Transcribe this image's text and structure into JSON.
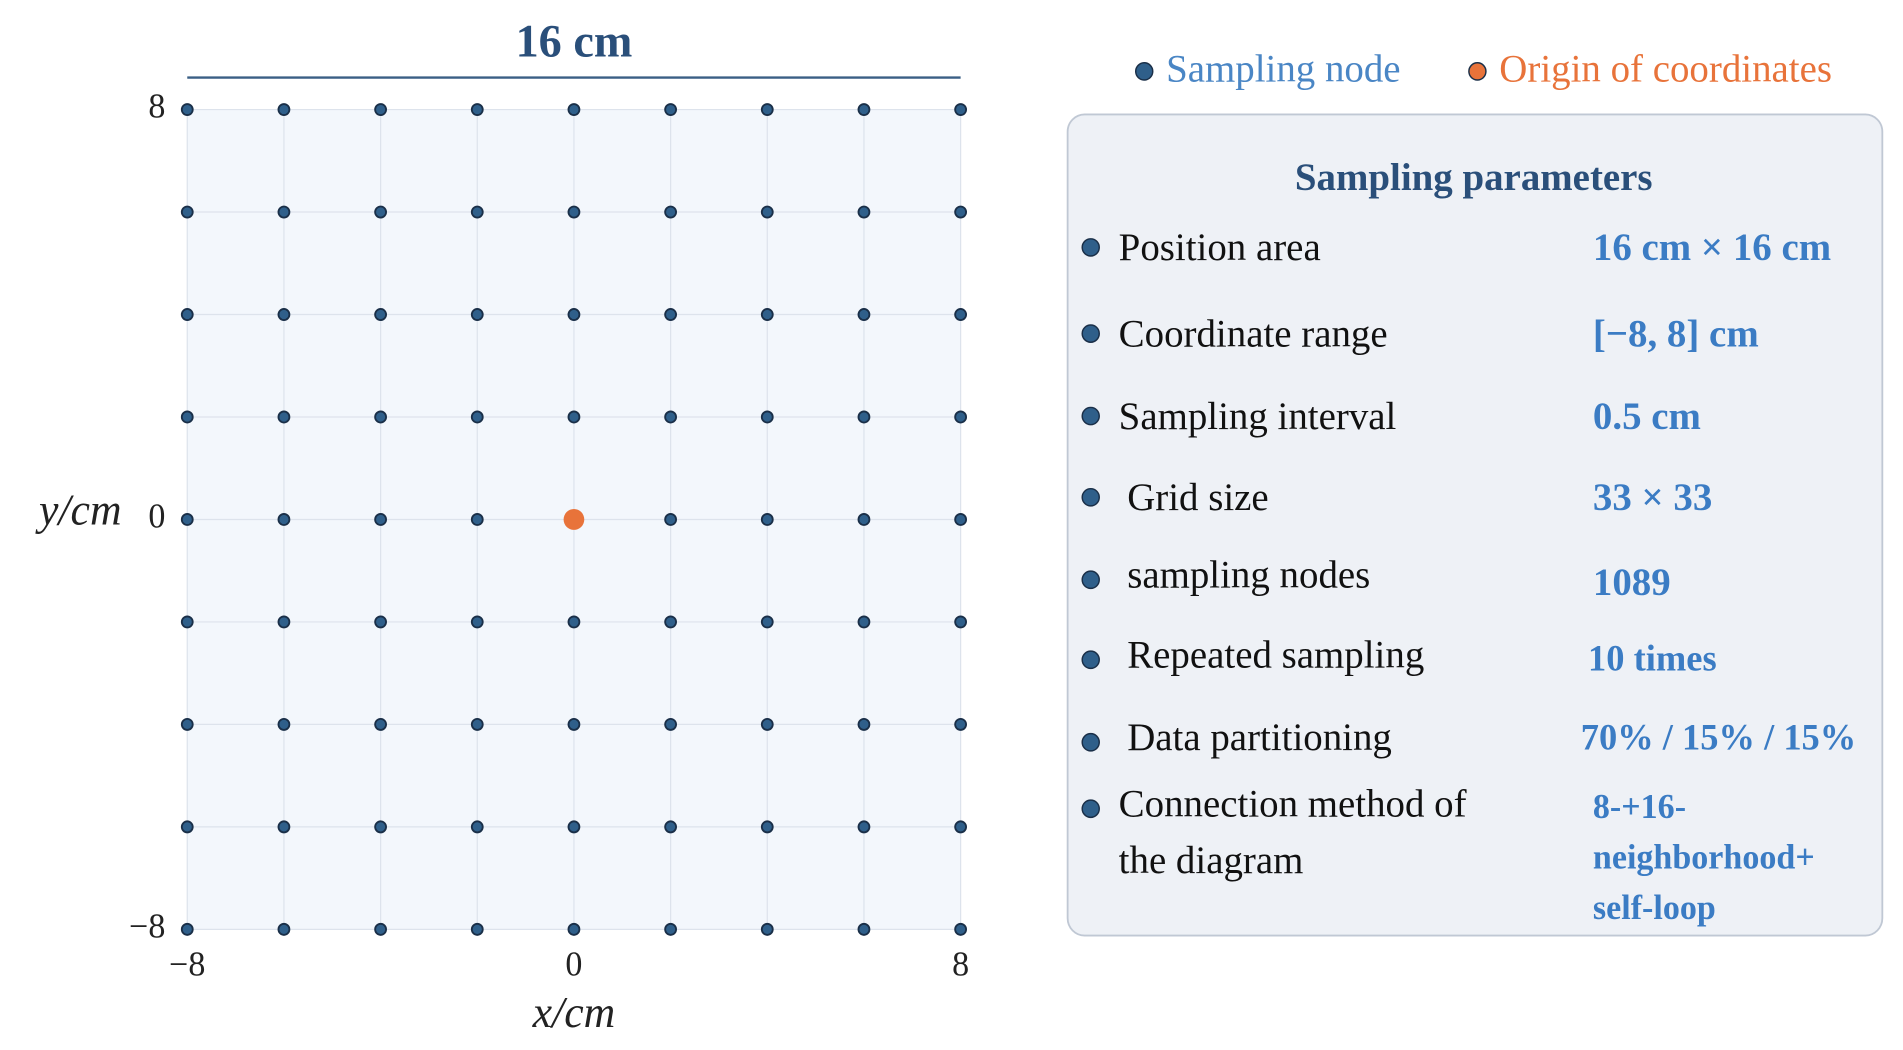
{
  "chart_data": {
    "type": "scatter",
    "annotation": "16 cm",
    "x_label": "x/cm",
    "y_label": "y/cm",
    "xlim": [
      -8,
      8
    ],
    "ylim": [
      -8,
      8
    ],
    "xticks": [
      {
        "value": -8,
        "label": "−8"
      },
      0,
      8
    ],
    "yticks": [
      {
        "value": -8,
        "label": "−8"
      },
      0,
      8
    ],
    "grid": true,
    "series": [
      {
        "name": "Sampling node",
        "color": "#2f5f8a",
        "x": [
          -8,
          -6,
          -4,
          -2,
          0,
          2,
          4,
          6,
          8,
          -8,
          -6,
          -4,
          -2,
          0,
          2,
          4,
          6,
          8,
          -8,
          -6,
          -4,
          -2,
          0,
          2,
          4,
          6,
          8,
          -8,
          -6,
          -4,
          -2,
          0,
          2,
          4,
          6,
          8,
          -8,
          -6,
          -4,
          -2,
          2,
          4,
          6,
          8,
          -8,
          -6,
          -4,
          -2,
          0,
          2,
          4,
          6,
          8,
          -8,
          -6,
          -4,
          -2,
          0,
          2,
          4,
          6,
          8,
          -8,
          -6,
          -4,
          -2,
          0,
          2,
          4,
          6,
          8,
          -8,
          -6,
          -4,
          -2,
          0,
          2,
          4,
          6,
          8
        ],
        "y": [
          8,
          8,
          8,
          8,
          8,
          8,
          8,
          8,
          8,
          6,
          6,
          6,
          6,
          6,
          6,
          6,
          6,
          6,
          4,
          4,
          4,
          4,
          4,
          4,
          4,
          4,
          4,
          2,
          2,
          2,
          2,
          2,
          2,
          2,
          2,
          2,
          0,
          0,
          0,
          0,
          0,
          0,
          0,
          0,
          -2,
          -2,
          -2,
          -2,
          -2,
          -2,
          -2,
          -2,
          -2,
          -4,
          -4,
          -4,
          -4,
          -4,
          -4,
          -4,
          -4,
          -4,
          -6,
          -6,
          -6,
          -6,
          -6,
          -6,
          -6,
          -6,
          -6,
          -8,
          -8,
          -8,
          -8,
          -8,
          -8,
          -8,
          -8,
          -8
        ]
      },
      {
        "name": "Origin of coordinates",
        "color": "#e8733a",
        "x": [
          0
        ],
        "y": [
          0
        ]
      }
    ]
  },
  "panel": {
    "title": "Sampling parameters",
    "rows": [
      {
        "label": [
          "Position area"
        ],
        "value": [
          "16 cm × 16 cm"
        ]
      },
      {
        "label": [
          "Coordinate range"
        ],
        "value": [
          "[−8, 8] cm"
        ]
      },
      {
        "label": [
          "Sampling interval"
        ],
        "value": [
          "0.5 cm"
        ]
      },
      {
        "label": [
          "Grid size"
        ],
        "value": [
          "33 × 33"
        ]
      },
      {
        "label": [
          "sampling nodes"
        ],
        "value": [
          "1089"
        ]
      },
      {
        "label": [
          "Repeated sampling"
        ],
        "value": [
          "10 times"
        ]
      },
      {
        "label": [
          "Data partitioning"
        ],
        "value": [
          "70% / 15% / 15%"
        ]
      },
      {
        "label": [
          "Connection method of",
          "the diagram"
        ],
        "value": [
          "8-+16-",
          "neighborhood+",
          "self-loop"
        ]
      }
    ]
  }
}
